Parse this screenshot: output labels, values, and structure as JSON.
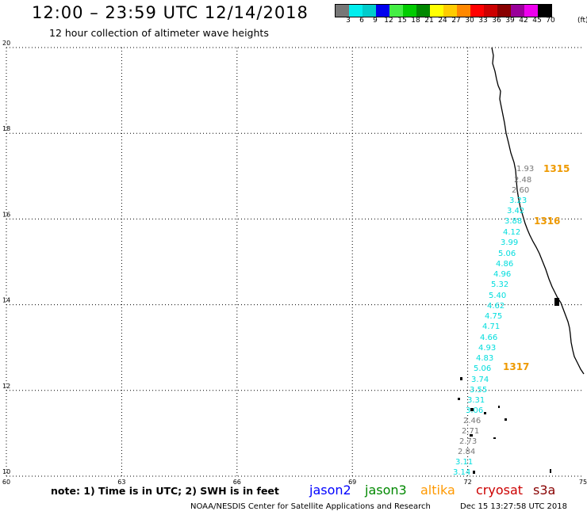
{
  "header": {
    "title": "12:00 – 23:59 UTC 12/14/2018",
    "subtitle": "12 hour collection of altimeter wave heights"
  },
  "legend": {
    "unit": "(ft)",
    "bins": [
      {
        "label": "3",
        "color": "#777777"
      },
      {
        "label": "6",
        "color": "#00eeee"
      },
      {
        "label": "9",
        "color": "#00cccc"
      },
      {
        "label": "12",
        "color": "#0000ee"
      },
      {
        "label": "15",
        "color": "#44ee44"
      },
      {
        "label": "18",
        "color": "#00cc00"
      },
      {
        "label": "21",
        "color": "#008800"
      },
      {
        "label": "24",
        "color": "#ffff00"
      },
      {
        "label": "27",
        "color": "#ffcc00"
      },
      {
        "label": "30",
        "color": "#ff8800"
      },
      {
        "label": "33",
        "color": "#ff0000"
      },
      {
        "label": "36",
        "color": "#cc0000"
      },
      {
        "label": "39",
        "color": "#880000"
      },
      {
        "label": "42",
        "color": "#990099"
      },
      {
        "label": "45",
        "color": "#ee00ee"
      },
      {
        "label": "70",
        "color": "#000000"
      }
    ]
  },
  "axes": {
    "x_ticks": [
      "60",
      "63",
      "66",
      "69",
      "72",
      "75"
    ],
    "y_ticks": [
      "10",
      "12",
      "14",
      "16",
      "18",
      "20"
    ]
  },
  "track_labels": [
    {
      "text": "1315",
      "color": "#ee9900"
    },
    {
      "text": "1316",
      "color": "#ee9900"
    },
    {
      "text": "1317",
      "color": "#ee9900"
    }
  ],
  "wave_heights": [
    {
      "value": "1.93",
      "color": "#777777"
    },
    {
      "value": "2.48",
      "color": "#777777"
    },
    {
      "value": "2.60",
      "color": "#777777"
    },
    {
      "value": "3.23",
      "color": "#00dddd"
    },
    {
      "value": "3.42",
      "color": "#00dddd"
    },
    {
      "value": "3.88",
      "color": "#00dddd"
    },
    {
      "value": "4.12",
      "color": "#00dddd"
    },
    {
      "value": "3.99",
      "color": "#00dddd"
    },
    {
      "value": "5.06",
      "color": "#00dddd"
    },
    {
      "value": "4.86",
      "color": "#00dddd"
    },
    {
      "value": "4.96",
      "color": "#00dddd"
    },
    {
      "value": "5.32",
      "color": "#00dddd"
    },
    {
      "value": "5.40",
      "color": "#00dddd"
    },
    {
      "value": "4.62",
      "color": "#00dddd"
    },
    {
      "value": "4.75",
      "color": "#00dddd"
    },
    {
      "value": "4.71",
      "color": "#00dddd"
    },
    {
      "value": "4.66",
      "color": "#00dddd"
    },
    {
      "value": "4.93",
      "color": "#00dddd"
    },
    {
      "value": "4.83",
      "color": "#00dddd"
    },
    {
      "value": "5.06",
      "color": "#00dddd"
    },
    {
      "value": "3.74",
      "color": "#00dddd"
    },
    {
      "value": "3.55",
      "color": "#00dddd"
    },
    {
      "value": "3.31",
      "color": "#00dddd"
    },
    {
      "value": "3.06",
      "color": "#00dddd"
    },
    {
      "value": "2.46",
      "color": "#777777"
    },
    {
      "value": "2.71",
      "color": "#777777"
    },
    {
      "value": "2.73",
      "color": "#777777"
    },
    {
      "value": "2.84",
      "color": "#777777"
    },
    {
      "value": "3.11",
      "color": "#00dddd"
    },
    {
      "value": "3.14",
      "color": "#00dddd"
    }
  ],
  "note": "note:  1) Time is in UTC;  2) SWH is in feet",
  "satellites": [
    {
      "name": "jason2",
      "color": "#0000ff"
    },
    {
      "name": "jason3",
      "color": "#008800"
    },
    {
      "name": "altika",
      "color": "#ff9900"
    },
    {
      "name": "cryosat",
      "color": "#cc0000"
    },
    {
      "name": "s3a",
      "color": "#880000"
    }
  ],
  "footer": {
    "credit": "NOAA/NESDIS Center for Satellite Applications and Research",
    "timestamp": "Dec 15 13:27:58 UTC 2018"
  }
}
